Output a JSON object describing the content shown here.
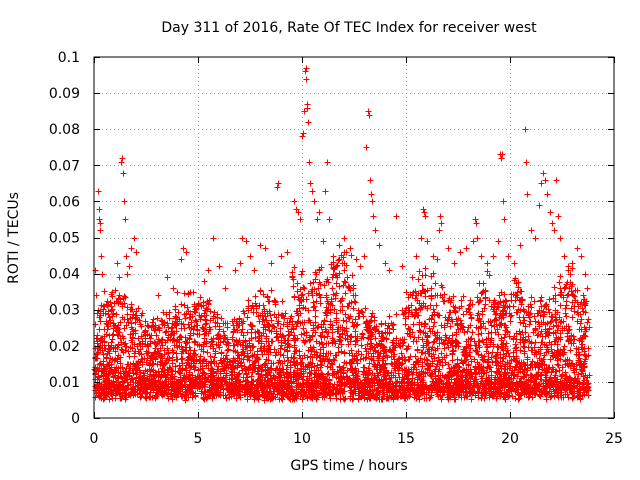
{
  "chart_data": {
    "type": "scatter",
    "title": "Day 311 of 2016, Rate Of TEC Index for receiver west",
    "xlabel": "GPS time / hours",
    "ylabel": "ROTI / TECUs",
    "xlim": [
      0,
      25
    ],
    "ylim": [
      0,
      0.1
    ],
    "xticks": [
      0,
      5,
      10,
      15,
      20,
      25
    ],
    "xtick_labels": [
      "0",
      "5",
      "10",
      "15",
      "20",
      "25"
    ],
    "yticks": [
      0,
      0.01,
      0.02,
      0.03,
      0.04,
      0.05,
      0.06,
      0.07,
      0.08,
      0.09,
      0.1
    ],
    "ytick_labels": [
      "0",
      "0.01",
      "0.02",
      "0.03",
      "0.04",
      "0.05",
      "0.06",
      "0.07",
      "0.08",
      "0.09",
      "0.1"
    ],
    "grid": true,
    "marker": "+",
    "color": "#ff0000",
    "series": [
      {
        "name": "ROTI",
        "points": [
          [
            0.05,
            0.041
          ],
          [
            0.1,
            0.034
          ],
          [
            0.2,
            0.063
          ],
          [
            0.22,
            0.058
          ],
          [
            0.25,
            0.055
          ],
          [
            0.28,
            0.054
          ],
          [
            0.3,
            0.052
          ],
          [
            0.35,
            0.045
          ],
          [
            0.4,
            0.04
          ],
          [
            0.5,
            0.031
          ],
          [
            1.1,
            0.043
          ],
          [
            1.2,
            0.039
          ],
          [
            1.3,
            0.071
          ],
          [
            1.35,
            0.072
          ],
          [
            1.4,
            0.068
          ],
          [
            1.45,
            0.06
          ],
          [
            1.5,
            0.055
          ],
          [
            1.55,
            0.045
          ],
          [
            1.6,
            0.04
          ],
          [
            1.7,
            0.042
          ],
          [
            1.8,
            0.047
          ],
          [
            1.9,
            0.05
          ],
          [
            2.0,
            0.046
          ],
          [
            3.1,
            0.034
          ],
          [
            3.5,
            0.039
          ],
          [
            3.8,
            0.036
          ],
          [
            4.0,
            0.035
          ],
          [
            4.2,
            0.044
          ],
          [
            4.3,
            0.047
          ],
          [
            4.4,
            0.046
          ],
          [
            4.6,
            0.035
          ],
          [
            5.0,
            0.031
          ],
          [
            5.3,
            0.038
          ],
          [
            5.5,
            0.041
          ],
          [
            5.7,
            0.05
          ],
          [
            6.0,
            0.042
          ],
          [
            6.3,
            0.036
          ],
          [
            6.8,
            0.041
          ],
          [
            7.0,
            0.043
          ],
          [
            7.1,
            0.05
          ],
          [
            7.3,
            0.049
          ],
          [
            7.5,
            0.045
          ],
          [
            7.7,
            0.041
          ],
          [
            8.0,
            0.048
          ],
          [
            8.2,
            0.047
          ],
          [
            8.5,
            0.043
          ],
          [
            8.8,
            0.064
          ],
          [
            8.85,
            0.065
          ],
          [
            9.0,
            0.045
          ],
          [
            9.3,
            0.046
          ],
          [
            9.6,
            0.06
          ],
          [
            9.7,
            0.058
          ],
          [
            9.8,
            0.057
          ],
          [
            9.9,
            0.055
          ],
          [
            10.0,
            0.078
          ],
          [
            10.05,
            0.079
          ],
          [
            10.1,
            0.085
          ],
          [
            10.15,
            0.096
          ],
          [
            10.18,
            0.097
          ],
          [
            10.2,
            0.094
          ],
          [
            10.22,
            0.087
          ],
          [
            10.25,
            0.086
          ],
          [
            10.3,
            0.082
          ],
          [
            10.35,
            0.071
          ],
          [
            10.4,
            0.065
          ],
          [
            10.5,
            0.063
          ],
          [
            10.6,
            0.06
          ],
          [
            10.7,
            0.055
          ],
          [
            10.8,
            0.057
          ],
          [
            11.0,
            0.049
          ],
          [
            11.1,
            0.063
          ],
          [
            11.2,
            0.071
          ],
          [
            11.3,
            0.055
          ],
          [
            11.5,
            0.045
          ],
          [
            11.8,
            0.048
          ],
          [
            12.0,
            0.05
          ],
          [
            12.3,
            0.047
          ],
          [
            12.6,
            0.044
          ],
          [
            12.8,
            0.042
          ],
          [
            13.0,
            0.045
          ],
          [
            13.1,
            0.075
          ],
          [
            13.15,
            0.085
          ],
          [
            13.2,
            0.084
          ],
          [
            13.25,
            0.066
          ],
          [
            13.3,
            0.062
          ],
          [
            13.35,
            0.06
          ],
          [
            13.4,
            0.056
          ],
          [
            13.5,
            0.052
          ],
          [
            13.7,
            0.048
          ],
          [
            14.0,
            0.043
          ],
          [
            14.2,
            0.041
          ],
          [
            14.5,
            0.056
          ],
          [
            14.8,
            0.042
          ],
          [
            15.0,
            0.035
          ],
          [
            15.3,
            0.039
          ],
          [
            15.5,
            0.045
          ],
          [
            15.7,
            0.05
          ],
          [
            15.8,
            0.058
          ],
          [
            15.85,
            0.057
          ],
          [
            15.9,
            0.056
          ],
          [
            16.0,
            0.049
          ],
          [
            16.3,
            0.045
          ],
          [
            16.5,
            0.044
          ],
          [
            16.6,
            0.052
          ],
          [
            16.65,
            0.056
          ],
          [
            16.7,
            0.054
          ],
          [
            17.0,
            0.047
          ],
          [
            17.3,
            0.043
          ],
          [
            17.6,
            0.046
          ],
          [
            17.9,
            0.047
          ],
          [
            18.2,
            0.049
          ],
          [
            18.3,
            0.055
          ],
          [
            18.35,
            0.054
          ],
          [
            18.4,
            0.05
          ],
          [
            18.6,
            0.045
          ],
          [
            18.9,
            0.043
          ],
          [
            19.2,
            0.045
          ],
          [
            19.4,
            0.049
          ],
          [
            19.5,
            0.073
          ],
          [
            19.55,
            0.072
          ],
          [
            19.6,
            0.073
          ],
          [
            19.65,
            0.06
          ],
          [
            19.7,
            0.055
          ],
          [
            19.9,
            0.045
          ],
          [
            20.2,
            0.043
          ],
          [
            20.5,
            0.048
          ],
          [
            20.7,
            0.08
          ],
          [
            20.75,
            0.071
          ],
          [
            20.8,
            0.062
          ],
          [
            21.0,
            0.052
          ],
          [
            21.2,
            0.05
          ],
          [
            21.4,
            0.059
          ],
          [
            21.5,
            0.065
          ],
          [
            21.6,
            0.068
          ],
          [
            21.7,
            0.066
          ],
          [
            21.8,
            0.062
          ],
          [
            21.9,
            0.057
          ],
          [
            22.0,
            0.054
          ],
          [
            22.1,
            0.052
          ],
          [
            22.2,
            0.066
          ],
          [
            22.3,
            0.056
          ],
          [
            22.4,
            0.05
          ],
          [
            22.6,
            0.045
          ],
          [
            22.8,
            0.041
          ],
          [
            23.0,
            0.043
          ],
          [
            23.2,
            0.047
          ],
          [
            23.4,
            0.045
          ],
          [
            23.6,
            0.04
          ],
          [
            23.7,
            0.036
          ]
        ]
      }
    ]
  }
}
